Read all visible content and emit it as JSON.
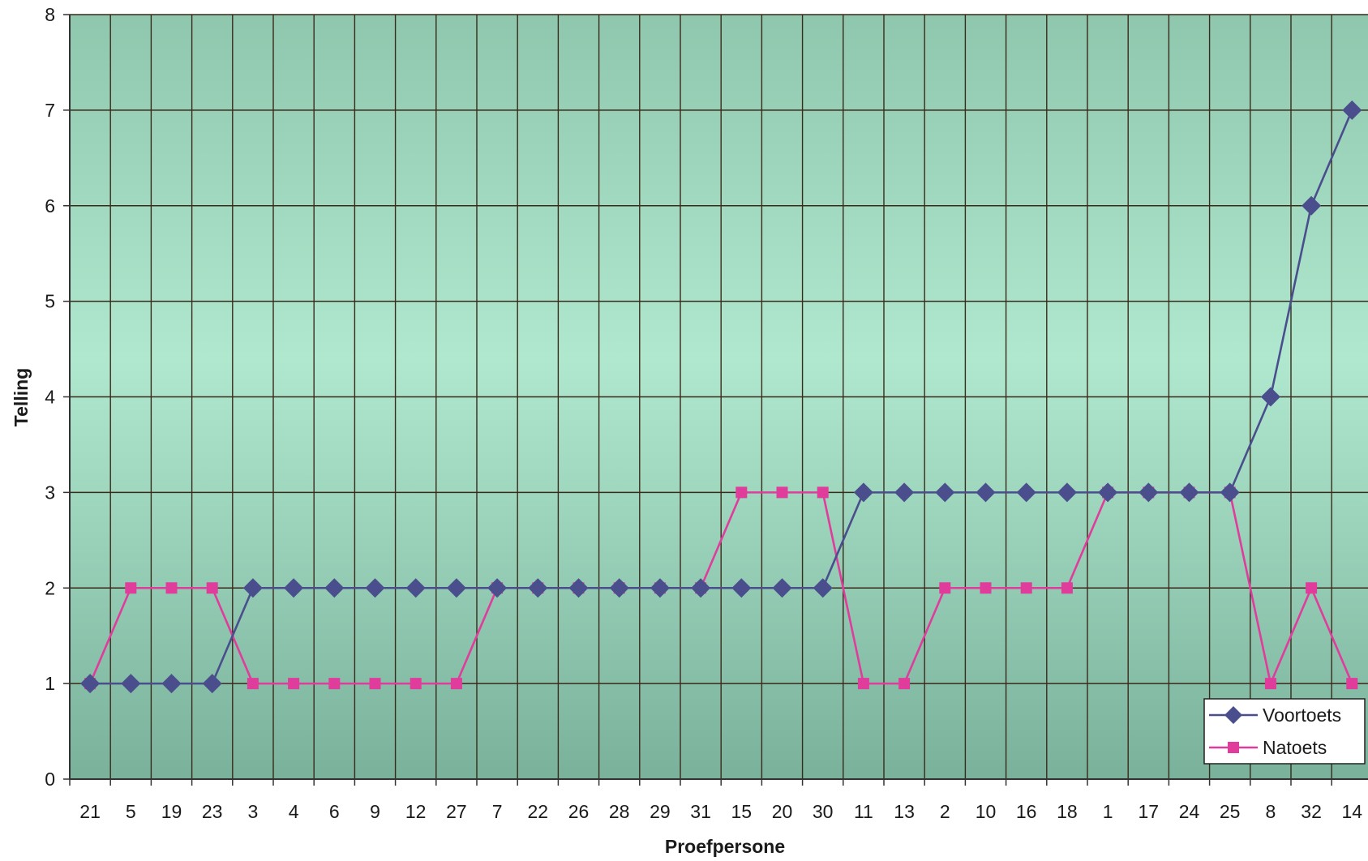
{
  "chart_data": {
    "type": "line",
    "title": "",
    "xlabel": "Proefpersone",
    "ylabel": "Telling",
    "ylim": [
      0,
      8
    ],
    "yticks": [
      0,
      1,
      2,
      3,
      4,
      5,
      6,
      7,
      8
    ],
    "grid": true,
    "legend_position": "bottom-right",
    "categories": [
      "21",
      "5",
      "19",
      "23",
      "3",
      "4",
      "6",
      "9",
      "12",
      "27",
      "7",
      "22",
      "26",
      "28",
      "29",
      "31",
      "15",
      "20",
      "30",
      "11",
      "13",
      "2",
      "10",
      "16",
      "18",
      "1",
      "17",
      "24",
      "25",
      "8",
      "32",
      "14"
    ],
    "series": [
      {
        "name": "Voortoets",
        "marker": "diamond",
        "color": "#4a4e8c",
        "values": [
          1,
          1,
          1,
          1,
          2,
          2,
          2,
          2,
          2,
          2,
          2,
          2,
          2,
          2,
          2,
          2,
          2,
          2,
          2,
          3,
          3,
          3,
          3,
          3,
          3,
          3,
          3,
          3,
          3,
          4,
          6,
          7
        ]
      },
      {
        "name": "Natoets",
        "marker": "square",
        "color": "#e03c9c",
        "values": [
          1,
          2,
          2,
          2,
          1,
          1,
          1,
          1,
          1,
          1,
          2,
          2,
          2,
          2,
          2,
          2,
          3,
          3,
          3,
          1,
          1,
          2,
          2,
          2,
          2,
          3,
          3,
          3,
          3,
          1,
          2,
          1
        ]
      }
    ],
    "colors": {
      "plot_bg_top": "#a6e3c9",
      "plot_bg_bottom": "#7fb8a2",
      "grid": "#3a2a1a"
    }
  }
}
